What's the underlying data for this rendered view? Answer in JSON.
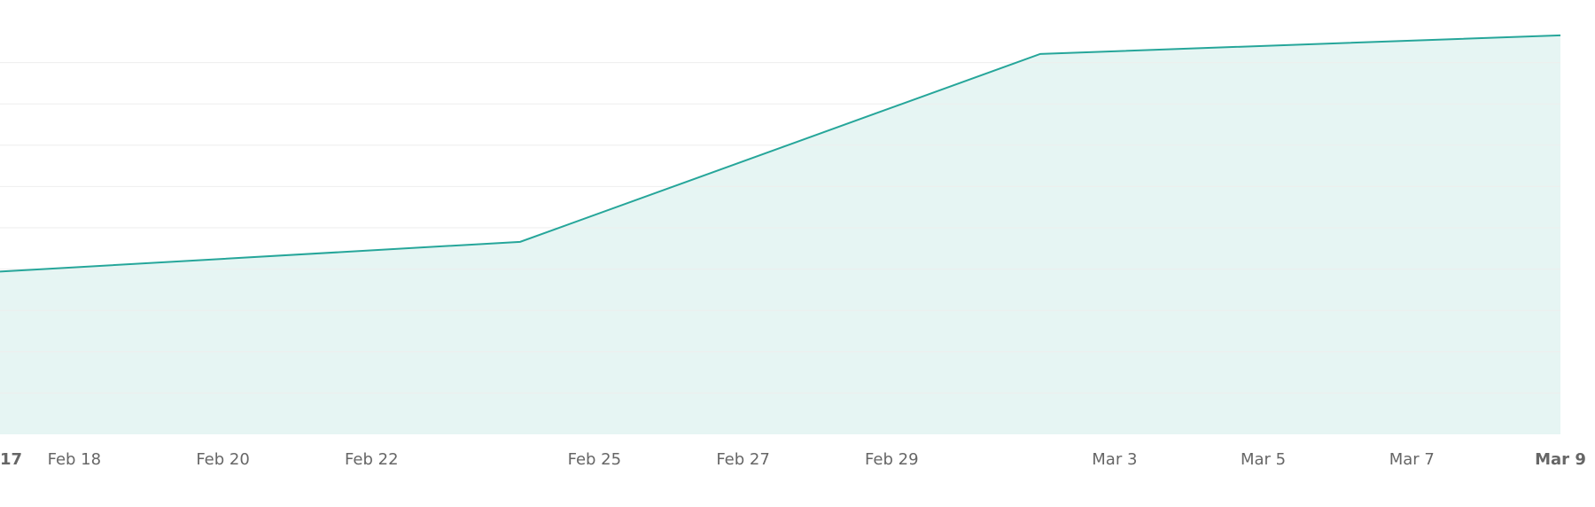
{
  "chart_data": {
    "type": "area",
    "x": [
      0,
      7,
      14,
      21
    ],
    "series": [
      {
        "color": "#26a69a",
        "fill": "#e6f5f3",
        "values": [
          3.94,
          4.66,
          9.21,
          9.66
        ]
      }
    ],
    "xlim": [
      0,
      21
    ],
    "xticks": [
      {
        "value": 0,
        "label": "17"
      },
      {
        "value": 1,
        "label": "Feb 18"
      },
      {
        "value": 3,
        "label": "Feb 20"
      },
      {
        "value": 5,
        "label": "Feb 22"
      },
      {
        "value": 8,
        "label": "Feb 25"
      },
      {
        "value": 10,
        "label": "Feb 27"
      },
      {
        "value": 12,
        "label": "Feb 29"
      },
      {
        "value": 15,
        "label": "Mar 3"
      },
      {
        "value": 17,
        "label": "Mar 5"
      },
      {
        "value": 19,
        "label": "Mar 7"
      },
      {
        "value": 21,
        "label": "Mar 9"
      }
    ],
    "ylim": [
      0,
      10
    ],
    "yticks": [
      1,
      2,
      3,
      4,
      5,
      6,
      7,
      8,
      9
    ],
    "grid": true
  }
}
